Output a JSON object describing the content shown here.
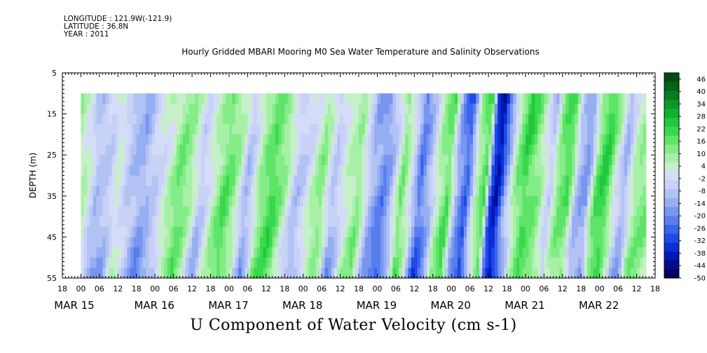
{
  "header": {
    "longitude": "LONGITUDE : 121.9W(-121.9)",
    "latitude": "LATITUDE : 36.8N",
    "year": "YEAR : 2011"
  },
  "chart_data": {
    "type": "heatmap",
    "title": "Hourly Gridded MBARI Mooring M0 Sea Water Temperature and Salinity Observations",
    "subtitle": "U Component of Water Velocity (cm s-1)",
    "xlabel": "",
    "ylabel": "DEPTH (m)",
    "ylim": [
      55,
      5
    ],
    "yticks": [
      5,
      15,
      25,
      35,
      45,
      55
    ],
    "data_depth_range": [
      10,
      55
    ],
    "time_range_hours_labels": {
      "start": "MAR 15 18",
      "end": "MAR 22 19"
    },
    "x_hour_ticks": [
      "18",
      "00",
      "06",
      "12",
      "18",
      "00",
      "06",
      "12",
      "18",
      "00",
      "06",
      "12",
      "18",
      "00",
      "06",
      "12",
      "18",
      "00",
      "06",
      "12",
      "18",
      "00",
      "06",
      "12",
      "18",
      "00",
      "06",
      "12",
      "18",
      "00",
      "06",
      "12",
      "18"
    ],
    "date_labels": [
      {
        "label": "MAR 15",
        "day": 0
      },
      {
        "label": "MAR 16",
        "day": 1
      },
      {
        "label": "MAR 17",
        "day": 2
      },
      {
        "label": "MAR 18",
        "day": 3
      },
      {
        "label": "MAR 19",
        "day": 4
      },
      {
        "label": "MAR 20",
        "day": 5
      },
      {
        "label": "MAR 21",
        "day": 6
      },
      {
        "label": "MAR 22",
        "day": 7
      }
    ],
    "colorbar": {
      "labels": [
        46,
        40,
        34,
        28,
        22,
        16,
        10,
        4,
        -2,
        -8,
        -14,
        -20,
        -26,
        -32,
        -38,
        -44,
        -50
      ],
      "min": -50,
      "max": 49,
      "colors": [
        "#000060",
        "#000c8a",
        "#0018b4",
        "#0a2ed8",
        "#1e4ae6",
        "#3a64ec",
        "#587eee",
        "#7896f0",
        "#96aef2",
        "#b2c2f4",
        "#c8d2f6",
        "#d4dcf8",
        "#c6f0c8",
        "#a8f0a8",
        "#84ec88",
        "#5ee468",
        "#3ad84e",
        "#22c83c",
        "#14b030",
        "#0c9828",
        "#067e20",
        "#026418",
        "#004c10"
      ]
    },
    "bands": [
      {
        "t": 0.0,
        "v": -6
      },
      {
        "t": 3.0,
        "v": 2
      },
      {
        "t": 6.0,
        "v": 12
      },
      {
        "t": 9.5,
        "v": 4
      },
      {
        "t": 13.0,
        "v": -12
      },
      {
        "t": 17.0,
        "v": -6
      },
      {
        "t": 20.0,
        "v": 6
      },
      {
        "t": 24.0,
        "v": -8
      },
      {
        "t": 28.0,
        "v": -16
      },
      {
        "t": 32.0,
        "v": -4
      },
      {
        "t": 36.0,
        "v": 6
      },
      {
        "t": 40.0,
        "v": 14
      },
      {
        "t": 44.0,
        "v": 4
      },
      {
        "t": 47.0,
        "v": -6
      },
      {
        "t": 51.0,
        "v": 8
      },
      {
        "t": 55.0,
        "v": 16
      },
      {
        "t": 59.0,
        "v": 4
      },
      {
        "t": 62.0,
        "v": -10
      },
      {
        "t": 66.0,
        "v": 12
      },
      {
        "t": 70.0,
        "v": 18
      },
      {
        "t": 74.0,
        "v": 6
      },
      {
        "t": 78.0,
        "v": -6
      },
      {
        "t": 82.0,
        "v": 2
      },
      {
        "t": 86.0,
        "v": 10
      },
      {
        "t": 90.0,
        "v": -10
      },
      {
        "t": 94.0,
        "v": 6
      },
      {
        "t": 98.0,
        "v": 12
      },
      {
        "t": 102.0,
        "v": -14
      },
      {
        "t": 106.0,
        "v": -20
      },
      {
        "t": 109.0,
        "v": -6
      },
      {
        "t": 112.0,
        "v": 16
      },
      {
        "t": 115.0,
        "v": -2
      },
      {
        "t": 118.0,
        "v": -26
      },
      {
        "t": 121.0,
        "v": -10
      },
      {
        "t": 124.0,
        "v": 10
      },
      {
        "t": 127.0,
        "v": 20
      },
      {
        "t": 130.0,
        "v": -16
      },
      {
        "t": 133.0,
        "v": -30
      },
      {
        "t": 136.0,
        "v": 6
      },
      {
        "t": 139.0,
        "v": 22
      },
      {
        "t": 141.0,
        "v": -28
      },
      {
        "t": 143.0,
        "v": -40
      },
      {
        "t": 146.0,
        "v": -14
      },
      {
        "t": 149.0,
        "v": 8
      },
      {
        "t": 152.0,
        "v": 22
      },
      {
        "t": 156.0,
        "v": 14
      },
      {
        "t": 160.0,
        "v": -8
      },
      {
        "t": 163.0,
        "v": 12
      },
      {
        "t": 166.0,
        "v": 18
      },
      {
        "t": 169.0,
        "v": -8
      },
      {
        "t": 172.0,
        "v": -14
      },
      {
        "t": 175.0,
        "v": 14
      },
      {
        "t": 178.0,
        "v": 20
      },
      {
        "t": 181.0,
        "v": 4
      },
      {
        "t": 184.0,
        "v": -10
      },
      {
        "t": 187.0,
        "v": 8
      },
      {
        "t": 189.0,
        "v": 10
      }
    ],
    "colorbar_levels_note": "",
    "grid": false
  }
}
